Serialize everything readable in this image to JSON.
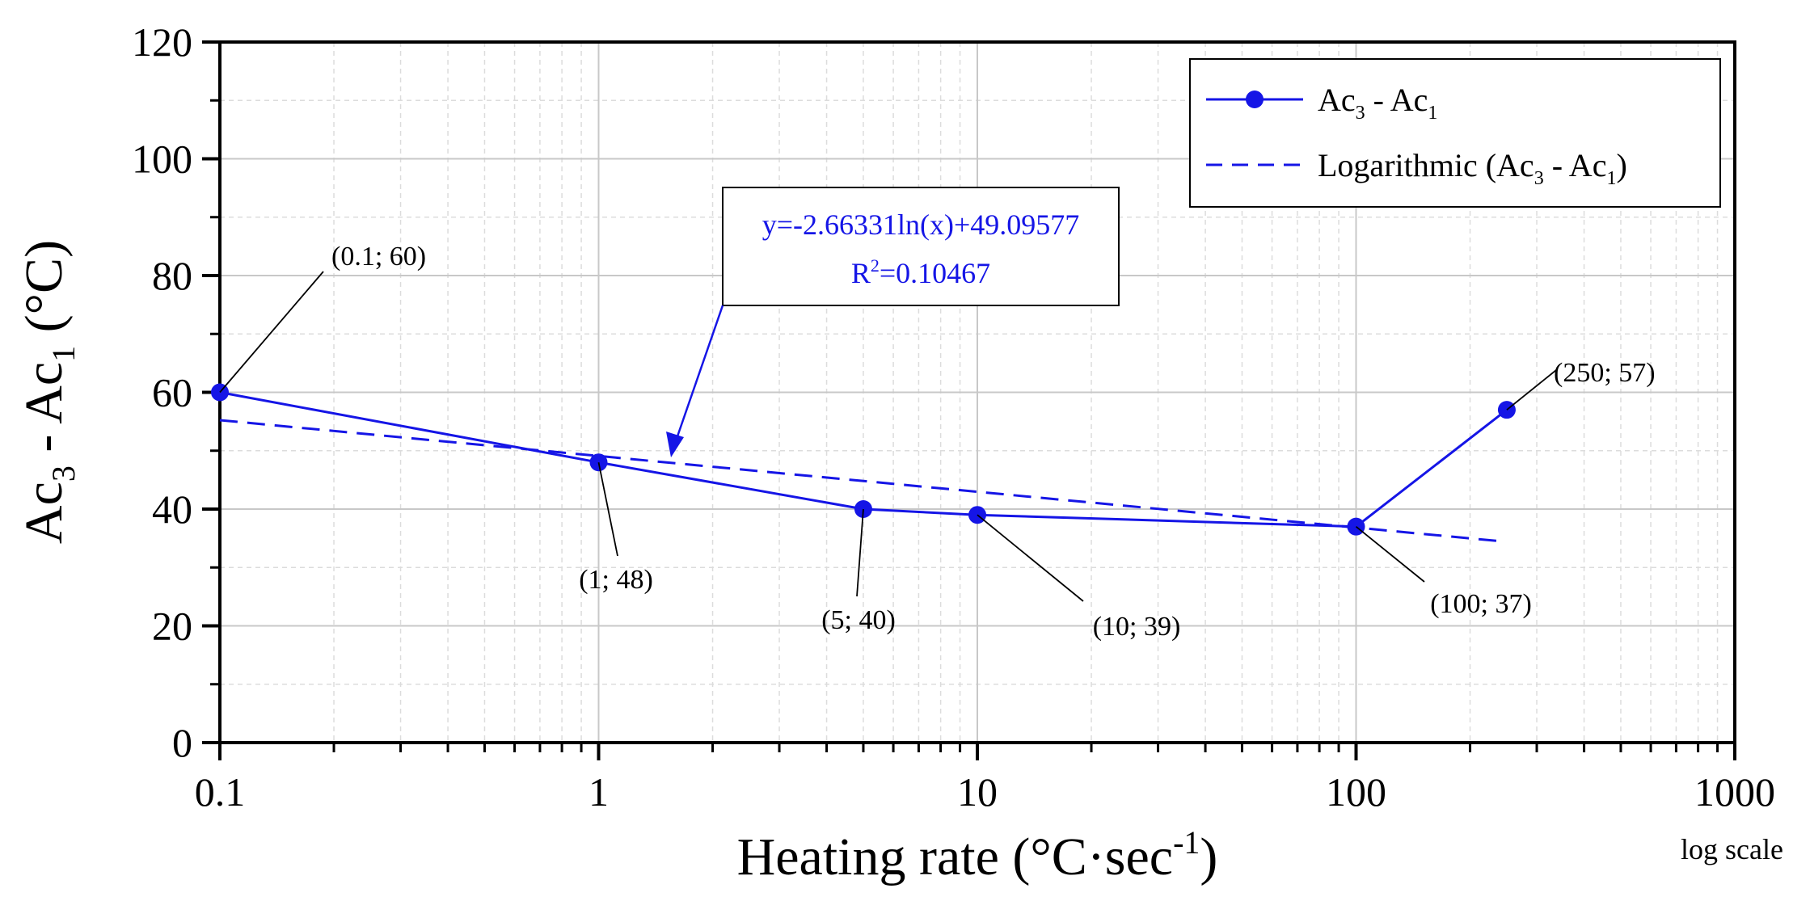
{
  "chart_data": {
    "type": "line",
    "title": "",
    "xlabel": "Heating rate (°C·sec",
    "xlabel_sup": "-1",
    "xlabel_close": ")",
    "xscale": "log",
    "xscale_note": "log scale",
    "xlim": [
      0.1,
      1000
    ],
    "ylim": [
      0,
      120
    ],
    "ylabel_parts": [
      "Ac",
      "3",
      " - Ac",
      "1",
      " (°C)"
    ],
    "xticks": [
      0.1,
      1,
      10,
      100,
      1000
    ],
    "xtick_labels": [
      "0.1",
      "1",
      "10",
      "100",
      "1000"
    ],
    "yticks": [
      0,
      20,
      40,
      60,
      80,
      100,
      120
    ],
    "ytick_labels": [
      "0",
      "20",
      "40",
      "60",
      "80",
      "100",
      "120"
    ],
    "grid": true,
    "series": [
      {
        "name": "Ac3 - Ac1",
        "legend_parts": [
          "Ac",
          "3",
          " - Ac",
          "1"
        ],
        "style": "solid-markers",
        "color": "#1515e6",
        "x": [
          0.1,
          1,
          5,
          10,
          100,
          250
        ],
        "y": [
          60,
          48,
          40,
          39,
          37,
          57
        ]
      },
      {
        "name": "Logarithmic (Ac3 - Ac1)",
        "legend_parts": [
          "Logarithmic (Ac",
          "3",
          " - Ac",
          "1",
          ")"
        ],
        "style": "dashed",
        "color": "#1515e6",
        "x_range": [
          0.1,
          240
        ],
        "intercept": 49.09577,
        "slope_ln": -2.66331
      }
    ],
    "point_labels": [
      {
        "text": "(0.1; 60)",
        "x": 0.1,
        "y": 60
      },
      {
        "text": "(1; 48)",
        "x": 1,
        "y": 48
      },
      {
        "text": "(5; 40)",
        "x": 5,
        "y": 40
      },
      {
        "text": "(10; 39)",
        "x": 10,
        "y": 39
      },
      {
        "text": "(100; 37)",
        "x": 100,
        "y": 37
      },
      {
        "text": "(250; 57)",
        "x": 250,
        "y": 57
      }
    ],
    "equation_box": {
      "line1": "y=-2.66331ln(x)+49.09577",
      "line2_prefix": "R",
      "line2_sup": "2",
      "line2_value": "=0.10467"
    },
    "legend_position": "top-right"
  }
}
